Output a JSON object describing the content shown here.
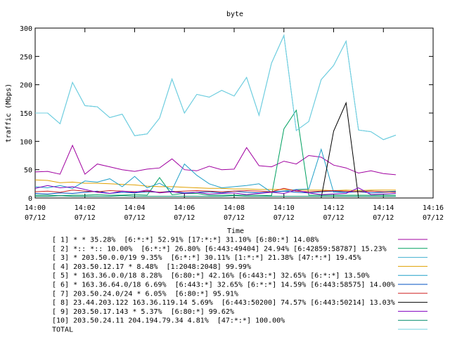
{
  "chart_data": {
    "type": "line",
    "title": "byte",
    "xlabel": "Time",
    "ylabel": "traffic (Mbps)",
    "ylim": [
      0,
      300
    ],
    "yticks": [
      0,
      50,
      100,
      150,
      200,
      250,
      300
    ],
    "xlim": [
      "14:00",
      "14:16"
    ],
    "xticks": [
      {
        "time": "14:00",
        "date": "07/12"
      },
      {
        "time": "14:02",
        "date": "07/12"
      },
      {
        "time": "14:04",
        "date": "07/12"
      },
      {
        "time": "14:06",
        "date": "07/12"
      },
      {
        "time": "14:08",
        "date": "07/12"
      },
      {
        "time": "14:10",
        "date": "07/12"
      },
      {
        "time": "14:12",
        "date": "07/12"
      },
      {
        "time": "14:14",
        "date": "07/12"
      },
      {
        "time": "14:16",
        "date": "07/12"
      }
    ],
    "grid": false,
    "legend_position": "bottom",
    "x": [
      "14:00:00",
      "14:00:30",
      "14:01:00",
      "14:01:30",
      "14:02:00",
      "14:02:30",
      "14:03:00",
      "14:03:30",
      "14:04:00",
      "14:04:30",
      "14:05:00",
      "14:05:30",
      "14:06:00",
      "14:06:30",
      "14:07:00",
      "14:07:30",
      "14:08:00",
      "14:08:30",
      "14:09:00",
      "14:09:30",
      "14:10:00",
      "14:10:30",
      "14:11:00",
      "14:11:30",
      "14:12:00",
      "14:12:30",
      "14:13:00",
      "14:13:30",
      "14:14:00",
      "14:14:30"
    ],
    "series": [
      {
        "name": "[ 1] * * 35.28%  [6:*:*] 52.91% [17:*:*] 31.10% [6:80:*] 14.08%",
        "color": "#a000a0",
        "values": [
          46,
          47,
          42,
          93,
          42,
          60,
          55,
          50,
          47,
          51,
          53,
          69,
          50,
          48,
          56,
          50,
          51,
          89,
          57,
          55,
          65,
          60,
          75,
          72,
          58,
          53,
          44,
          48,
          43,
          41
        ]
      },
      {
        "name": "[ 2] *:: *:: 10.00%  [6:*:*] 26.80% [6:443:49404] 24.94% [6:42859:58787] 15.23%",
        "color": "#00a060",
        "values": [
          5,
          5,
          4,
          5,
          5,
          6,
          5,
          5,
          6,
          5,
          36,
          6,
          8,
          8,
          5,
          5,
          5,
          5,
          5,
          4,
          122,
          155,
          5,
          5,
          5,
          5,
          5,
          5,
          5,
          5
        ]
      },
      {
        "name": "[ 3] * 203.50.0.0/19 9.35%  [6:*:*] 30.11% [1:*:*] 21.38% [47:*:*] 19.45%",
        "color": "#40b0d0",
        "values": [
          150,
          150,
          131,
          204,
          163,
          161,
          142,
          148,
          110,
          113,
          141,
          210,
          150,
          183,
          178,
          190,
          180,
          213,
          146,
          238,
          287,
          119,
          135,
          209,
          234,
          277,
          120,
          117,
          103,
          111
        ]
      },
      {
        "name": "[ 4] 203.50.12.17 * 8.48%  [1:2048:2048] 99.99%",
        "color": "#e0a000",
        "values": [
          32,
          31,
          27,
          28,
          26,
          26,
          25,
          24,
          23,
          21,
          20,
          20,
          19,
          18,
          17,
          17,
          16,
          16,
          15,
          15,
          15,
          14,
          14,
          14,
          13,
          14,
          13,
          14,
          14,
          14
        ]
      },
      {
        "name": "[ 5] * 163.36.0.0/18 8.28%  [6:80:*] 42.16% [6:443:*] 32.65% [6:*:*] 13.50%",
        "color": "#20a0c8",
        "values": [
          20,
          18,
          22,
          17,
          30,
          28,
          34,
          20,
          38,
          18,
          26,
          14,
          60,
          40,
          25,
          18,
          20,
          22,
          25,
          10,
          12,
          15,
          16,
          86,
          10,
          10,
          12,
          12,
          11,
          12
        ]
      },
      {
        "name": "[ 6] * 163.36.64.0/18 6.69%  [6:443:*] 32.65% [6:*:*] 14.59% [6:443:58575] 14.00%",
        "color": "#0050c0",
        "values": [
          8,
          7,
          9,
          8,
          10,
          12,
          8,
          10,
          9,
          11,
          10,
          12,
          9,
          10,
          11,
          9,
          12,
          10,
          9,
          11,
          12,
          10,
          9,
          11,
          12,
          10,
          11,
          9,
          10,
          11
        ]
      },
      {
        "name": "[ 7] 203.50.24.0/24 * 6.05%  [6:80:*] 95.91%",
        "color": "#d02020",
        "values": [
          11,
          12,
          10,
          14,
          12,
          11,
          13,
          12,
          11,
          12,
          10,
          11,
          12,
          13,
          12,
          11,
          12,
          13,
          12,
          11,
          17,
          12,
          11,
          12,
          13,
          12,
          11,
          12,
          11,
          10
        ]
      },
      {
        "name": "[ 8] 23.44.203.122 163.36.119.14 5.69%  [6:443:50200] 74.57% [6:443:50214] 13.03%",
        "color": "#000000",
        "values": [
          0,
          0,
          0,
          0,
          0,
          0,
          0,
          0,
          0,
          0,
          0,
          0,
          0,
          0,
          0,
          0,
          0,
          0,
          0,
          0,
          0,
          0,
          0,
          0,
          118,
          168,
          0,
          0,
          0,
          0
        ]
      },
      {
        "name": "[ 9] 203.50.17.143 * 5.37%  [6:80:*] 99.62%",
        "color": "#8000c0",
        "values": [
          17,
          22,
          18,
          20,
          15,
          10,
          8,
          12,
          10,
          14,
          9,
          11,
          8,
          10,
          7,
          8,
          9,
          6,
          8,
          10,
          8,
          14,
          9,
          6,
          7,
          8,
          18,
          6,
          7,
          8
        ]
      },
      {
        "name": "[10] 203.50.24.11 204.194.79.34 4.81%  [47:*:*] 100.00%",
        "color": "#008a6a",
        "values": [
          3,
          3,
          4,
          3,
          3,
          3,
          3,
          4,
          3,
          3,
          3,
          3,
          3,
          3,
          3,
          3,
          4,
          3,
          3,
          3,
          3,
          3,
          3,
          3,
          3,
          3,
          3,
          3,
          3,
          3
        ]
      },
      {
        "name": "TOTAL",
        "color": "#70d0e0",
        "values": [
          150,
          150,
          131,
          204,
          163,
          161,
          142,
          148,
          110,
          113,
          141,
          210,
          150,
          183,
          178,
          190,
          180,
          213,
          146,
          238,
          287,
          119,
          135,
          209,
          234,
          277,
          120,
          117,
          103,
          111
        ]
      }
    ]
  }
}
